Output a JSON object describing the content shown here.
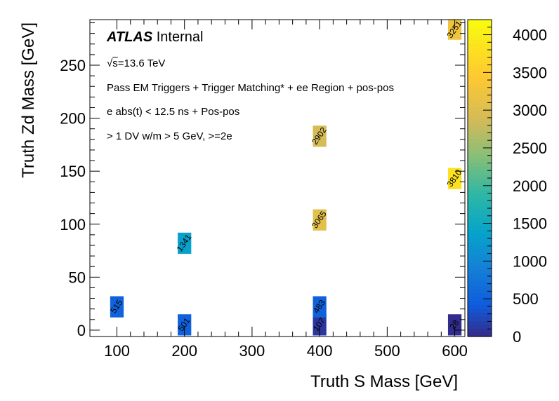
{
  "chart_data": {
    "type": "heatmap",
    "xlabel": "Truth S Mass [GeV]",
    "ylabel": "Truth Zd Mass [GeV]",
    "xlim": [
      60,
      615
    ],
    "ylim": [
      -6,
      293
    ],
    "xticks": [
      100,
      200,
      300,
      400,
      500,
      600
    ],
    "yticks": [
      0,
      50,
      100,
      150,
      200,
      250
    ],
    "zlim": [
      0,
      4200
    ],
    "zticks": [
      0,
      500,
      1000,
      1500,
      2000,
      2500,
      3000,
      3500,
      4000
    ],
    "bin_width_x": 20,
    "bin_width_y": 20,
    "cells": [
      {
        "x": 100,
        "y": 22,
        "value": 515,
        "label": "515"
      },
      {
        "x": 200,
        "y": 5,
        "value": 501,
        "label": "501"
      },
      {
        "x": 200,
        "y": 82,
        "value": 1341,
        "label": "1341"
      },
      {
        "x": 400,
        "y": 5,
        "value": 107,
        "label": "107"
      },
      {
        "x": 400,
        "y": 22,
        "value": 483,
        "label": "483"
      },
      {
        "x": 400,
        "y": 104,
        "value": 3065,
        "label": "3065"
      },
      {
        "x": 400,
        "y": 183,
        "value": 2902,
        "label": "2902"
      },
      {
        "x": 600,
        "y": 5,
        "value": 28,
        "label": "28"
      },
      {
        "x": 600,
        "y": 143,
        "value": 3810,
        "label": "3810"
      },
      {
        "x": 600,
        "y": 284,
        "value": 3251,
        "label": "3251"
      }
    ]
  },
  "annotations": {
    "atlas": "ATLAS",
    "internal": "Internal",
    "sqrt_s": "s",
    "energy": "=13.6 TeV",
    "line1": "Pass EM Triggers + Trigger Matching* + ee Region + pos-pos",
    "line2": "e abs(t) < 12.5 ns + Pos-pos",
    "line3": "> 1 DV w/m > 5 GeV, >=2e"
  }
}
